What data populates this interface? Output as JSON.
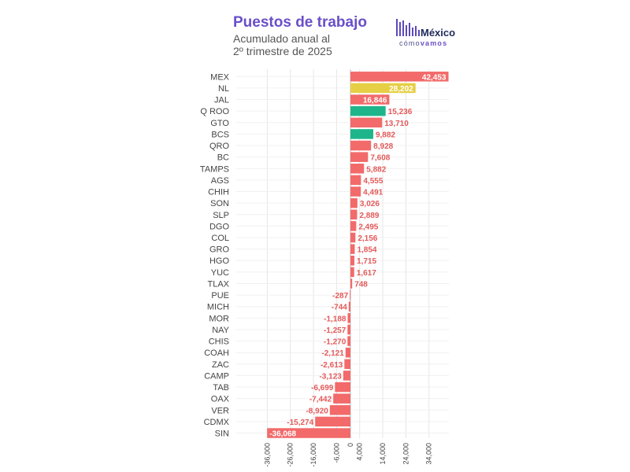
{
  "header": {
    "title": "Puestos de trabajo",
    "subtitle_line1": "Acumulado anual al",
    "subtitle_line2": "2º trimestre de 2025"
  },
  "logo": {
    "brand_main": "México",
    "brand_sub_a": "cómo",
    "brand_sub_b": "vamos"
  },
  "colors": {
    "default_bar": "#f26a6a",
    "highlight_yellow": "#e6cf45",
    "highlight_green": "#1fb58a",
    "label_positive_outside": "#e45a5a",
    "label_inside": "#ffffff",
    "grid": "#e6e6e6",
    "axis_text": "#444444"
  },
  "chart_data": {
    "type": "bar",
    "orientation": "horizontal",
    "title": "Puestos de trabajo",
    "subtitle": "Acumulado anual al 2º trimestre de 2025",
    "xlim": [
      -38000,
      40000
    ],
    "grid": true,
    "categories": [
      "MEX",
      "NL",
      "JAL",
      "Q ROO",
      "GTO",
      "BCS",
      "QRO",
      "BC",
      "TAMPS",
      "AGS",
      "CHIH",
      "SON",
      "SLP",
      "DGO",
      "COL",
      "GRO",
      "HGO",
      "YUC",
      "TLAX",
      "PUE",
      "MICH",
      "MOR",
      "NAY",
      "CHIS",
      "COAH",
      "ZAC",
      "CAMP",
      "TAB",
      "OAX",
      "VER",
      "CDMX",
      "SIN"
    ],
    "values": [
      42453,
      28202,
      16846,
      15236,
      13710,
      9882,
      8928,
      7608,
      5882,
      4555,
      4491,
      3026,
      2889,
      2495,
      2156,
      1854,
      1715,
      1617,
      748,
      -287,
      -744,
      -1188,
      -1257,
      -1270,
      -2121,
      -2613,
      -3123,
      -6699,
      -7442,
      -8920,
      -15274,
      -36068
    ],
    "value_labels": [
      "42,453",
      "28,202",
      "16,846",
      "15,236",
      "13,710",
      "9,882",
      "8,928",
      "7,608",
      "5,882",
      "4,555",
      "4,491",
      "3,026",
      "2,889",
      "2,495",
      "2,156",
      "1,854",
      "1,715",
      "1,617",
      "748",
      "-287",
      "-744",
      "-1,188",
      "-1,257",
      "-1,270",
      "-2,121",
      "-2,613",
      "-3,123",
      "-6,699",
      "-7,442",
      "-8,920",
      "-15,274",
      "-36,068"
    ],
    "bar_colors": [
      "default",
      "yellow",
      "default",
      "green",
      "default",
      "green",
      "default",
      "default",
      "default",
      "default",
      "default",
      "default",
      "default",
      "default",
      "default",
      "default",
      "default",
      "default",
      "default",
      "default",
      "default",
      "default",
      "default",
      "default",
      "default",
      "default",
      "default",
      "default",
      "default",
      "default",
      "default",
      "default"
    ],
    "x_ticks": [
      -36000,
      -26000,
      -16000,
      -6000,
      0,
      4000,
      14000,
      24000,
      34000
    ],
    "x_tick_labels": [
      "-36,000",
      "-26,000",
      "-16,000",
      "-6,000",
      "0",
      "4,000",
      "14,000",
      "24,000",
      "34,000"
    ]
  }
}
